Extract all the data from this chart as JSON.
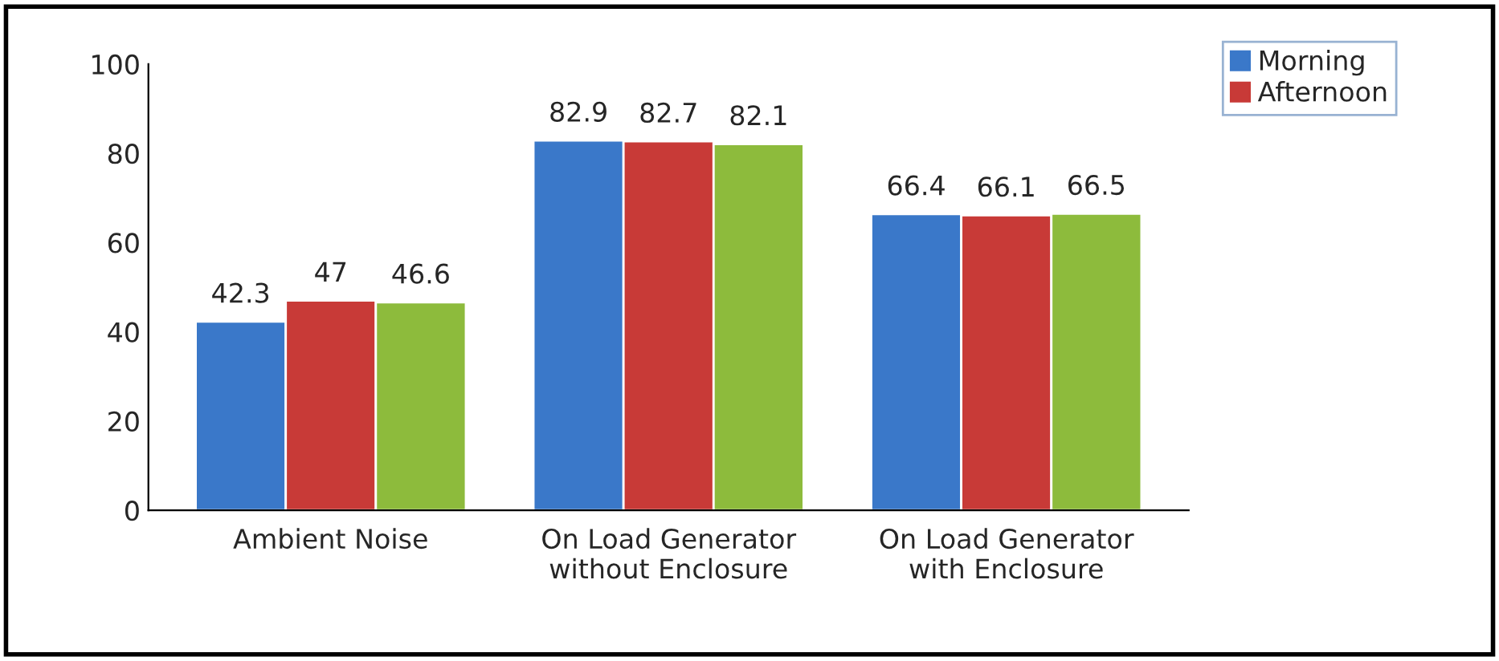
{
  "chart_data": {
    "type": "bar",
    "categories": [
      "Ambient Noise",
      "On Load Generator\nwithout Enclosure",
      "On Load Generator\nwith Enclosure"
    ],
    "series": [
      {
        "name": "Morning",
        "color": "#3a78c9",
        "values": [
          42.3,
          82.9,
          66.4
        ]
      },
      {
        "name": "Afternoon",
        "color": "#c83a37",
        "values": [
          47,
          82.7,
          66.1
        ]
      },
      {
        "color": "#8dbb3c",
        "values": [
          46.6,
          82.1,
          66.5
        ]
      }
    ],
    "ylim": [
      0,
      100
    ],
    "yticks": [
      0,
      20,
      40,
      60,
      80,
      100
    ],
    "data_labels": true,
    "grid": false,
    "legend": "top right"
  }
}
